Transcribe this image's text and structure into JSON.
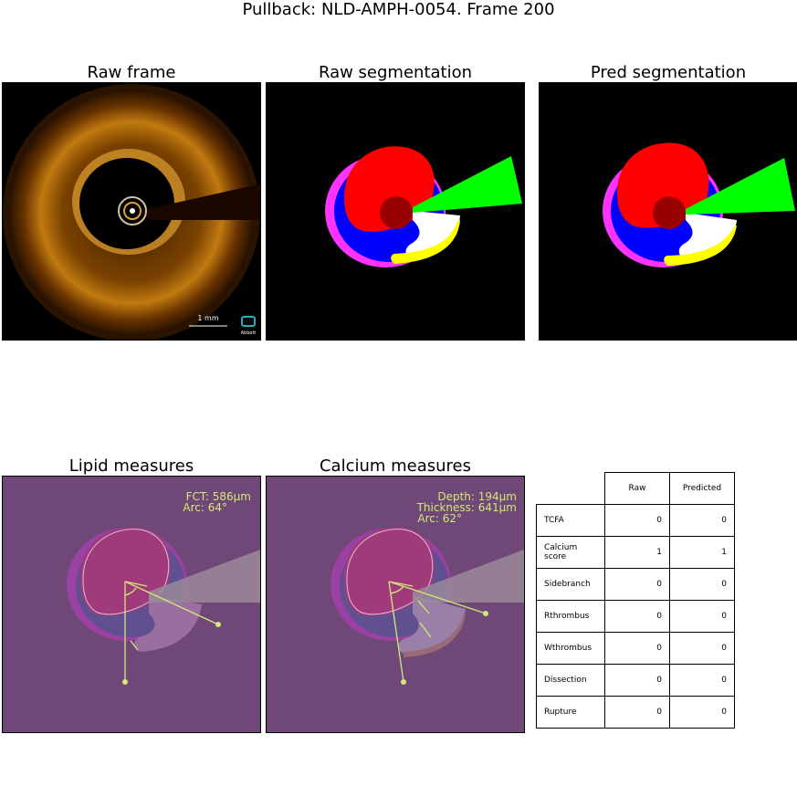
{
  "title": "Pullback: NLD-AMPH-0054. Frame 200",
  "panels": {
    "raw_frame": {
      "title": "Raw frame",
      "scalebar_label": "1 mm",
      "logo_text": "Abbott"
    },
    "raw_segmentation": {
      "title": "Raw segmentation"
    },
    "pred_segmentation": {
      "title": "Pred segmentation"
    },
    "lipid_measures": {
      "title": "Lipid measures",
      "fct": "FCT: 586µm",
      "arc": "Arc: 64°"
    },
    "calcium_measures": {
      "title": "Calcium measures",
      "depth": "Depth: 194µm",
      "thickness": "Thickness: 641µm",
      "arc": "Arc: 62°"
    }
  },
  "table": {
    "columns": [
      "Raw",
      "Predicted"
    ],
    "rows": [
      {
        "label": "TCFA",
        "raw": "0",
        "predicted": "0"
      },
      {
        "label": "Calcium score",
        "raw": "1",
        "predicted": "1"
      },
      {
        "label": "Sidebranch",
        "raw": "0",
        "predicted": "0"
      },
      {
        "label": "Rthrombus",
        "raw": "0",
        "predicted": "0"
      },
      {
        "label": "Wthrombus",
        "raw": "0",
        "predicted": "0"
      },
      {
        "label": "Dissection",
        "raw": "0",
        "predicted": "0"
      },
      {
        "label": "Rupture",
        "raw": "0",
        "predicted": "0"
      }
    ]
  },
  "colors": {
    "lumen": "#ff0000",
    "media": "#0000ff",
    "adventitia": "#ff33ff",
    "sidebranch": "#00ff00",
    "calcium": "#ffffff",
    "lipid": "#ffff00",
    "catheter": "#990000",
    "measure_bg": "#704877",
    "measure_line": "#d2e87a"
  }
}
